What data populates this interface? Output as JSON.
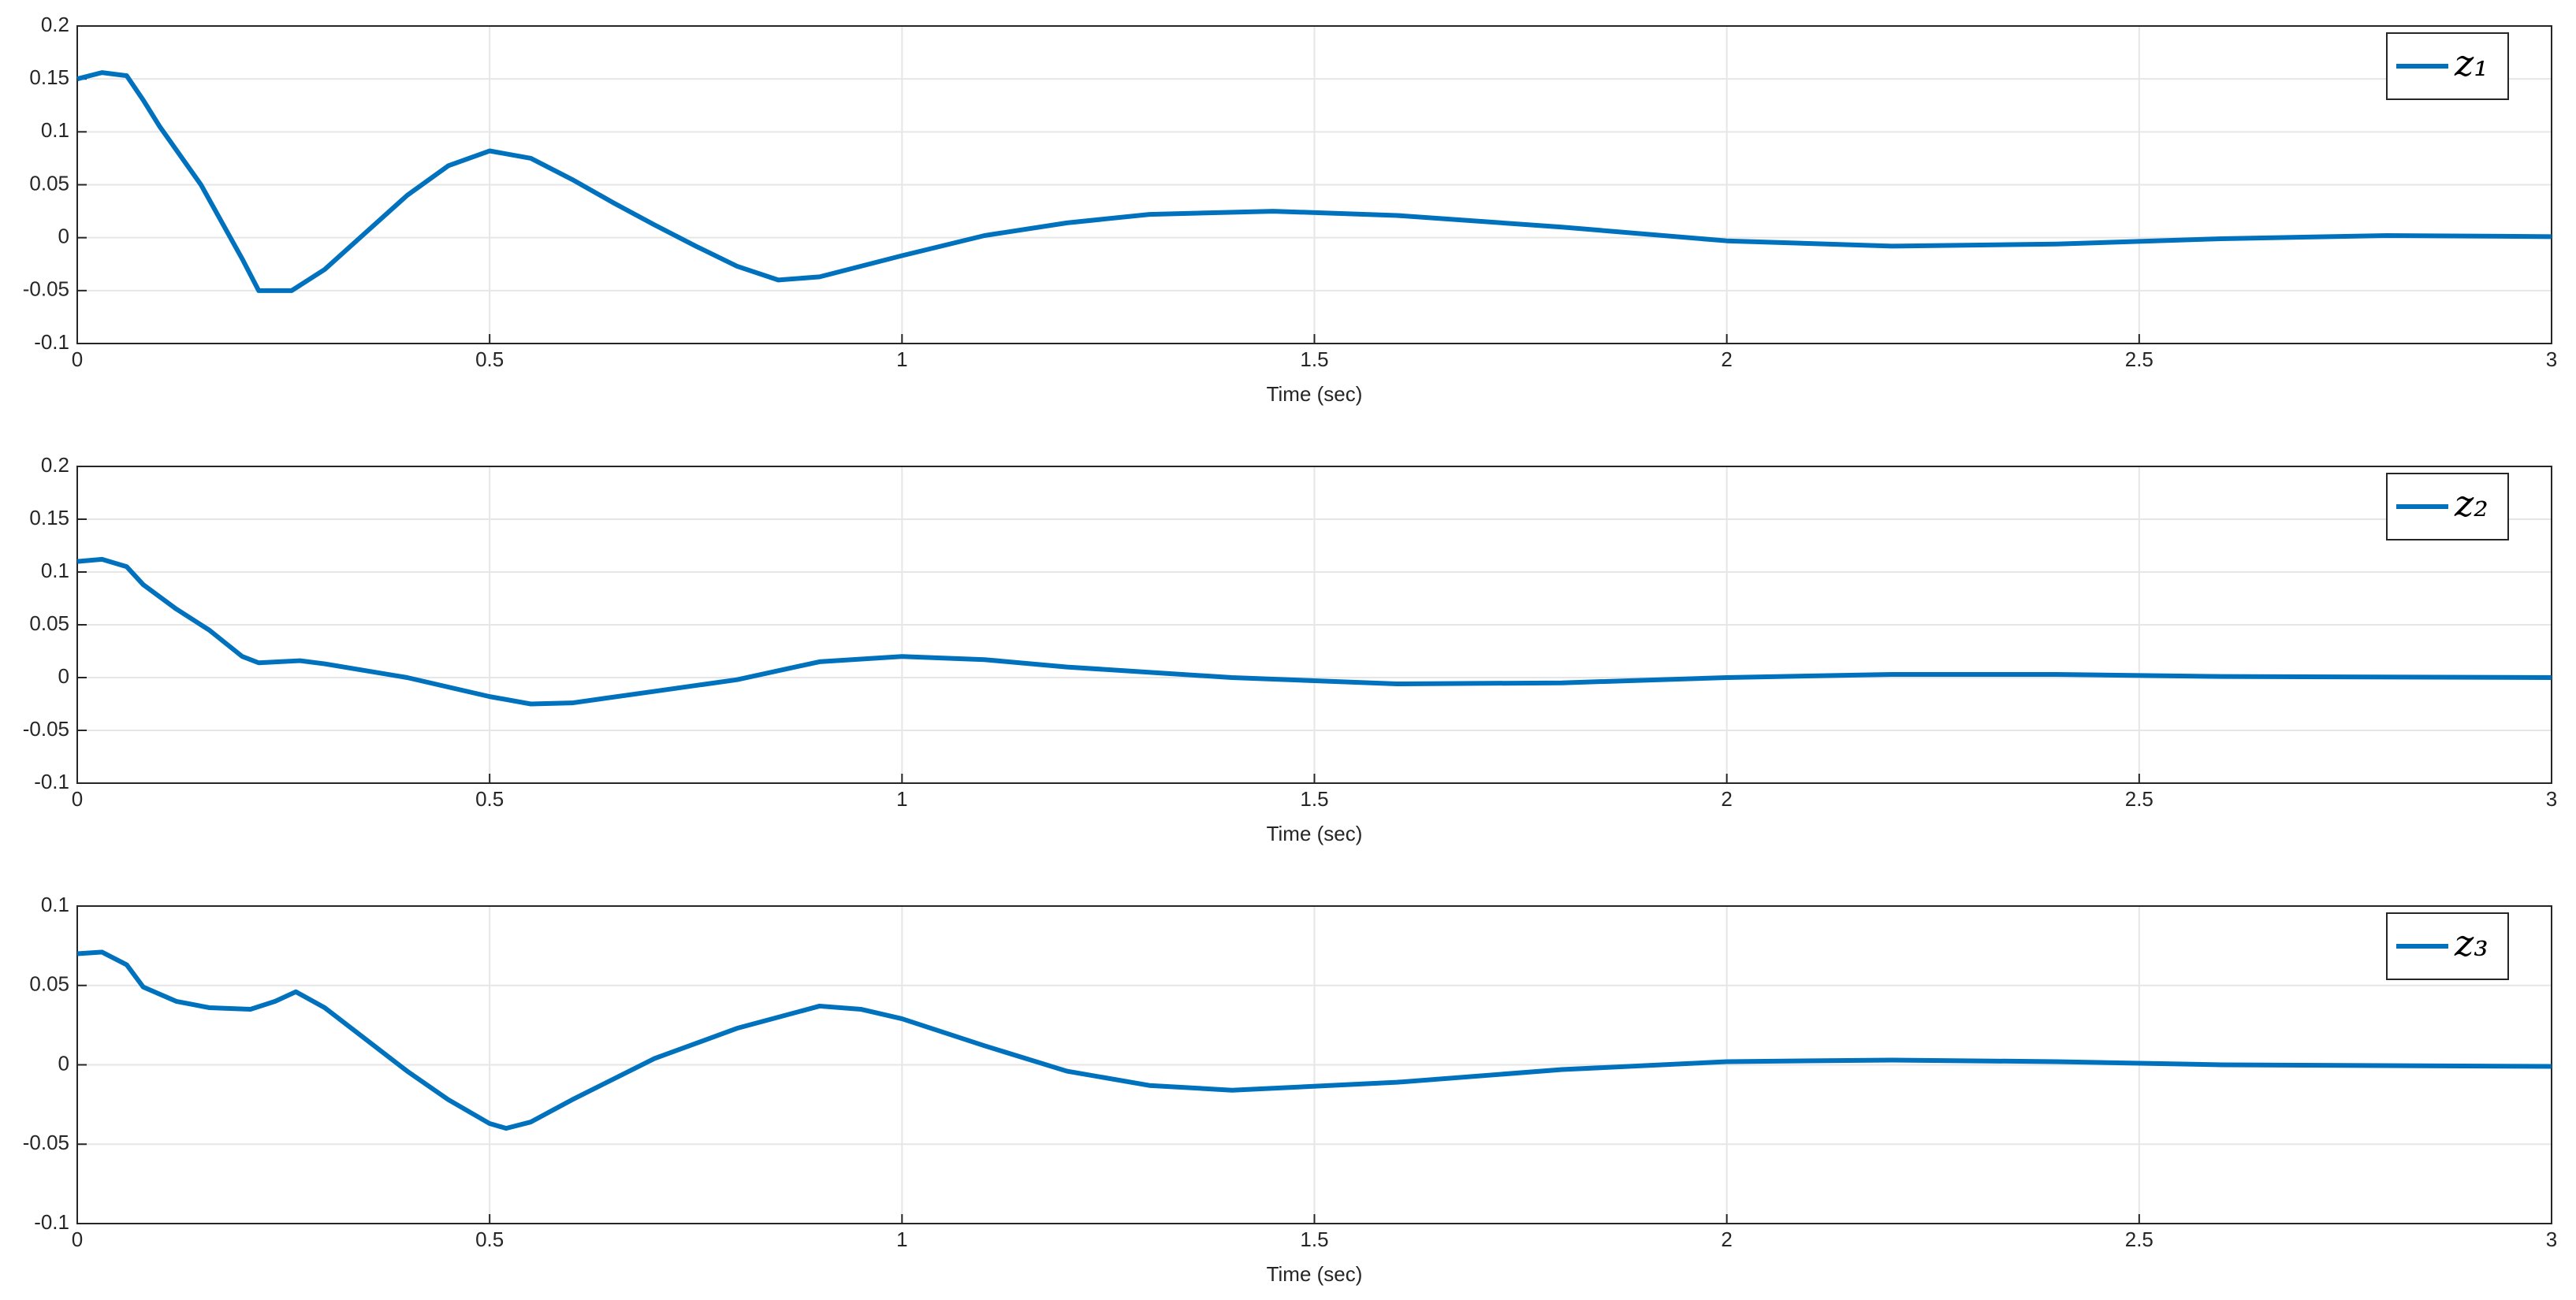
{
  "chart_data": [
    {
      "type": "line",
      "xlabel": "Time (sec)",
      "grid": true,
      "legend": "upper right",
      "xlim": [
        0,
        3
      ],
      "xticks": [
        0,
        0.5,
        1,
        1.5,
        2,
        2.5,
        3
      ],
      "ylim": [
        -0.1,
        0.2
      ],
      "yticks": [
        -0.1,
        -0.05,
        0,
        0.05,
        0.1,
        0.15,
        0.2
      ],
      "x": [
        0,
        0.03,
        0.06,
        0.08,
        0.1,
        0.15,
        0.2,
        0.22,
        0.26,
        0.3,
        0.35,
        0.4,
        0.45,
        0.5,
        0.55,
        0.6,
        0.65,
        0.7,
        0.75,
        0.8,
        0.85,
        0.9,
        1.0,
        1.1,
        1.2,
        1.3,
        1.45,
        1.6,
        1.8,
        2.0,
        2.2,
        2.4,
        2.6,
        2.8,
        3.0
      ],
      "series": [
        {
          "name": "z₁",
          "color": "#0072bd",
          "values": [
            0.15,
            0.156,
            0.153,
            0.13,
            0.105,
            0.05,
            -0.02,
            -0.05,
            -0.05,
            -0.03,
            0.005,
            0.04,
            0.068,
            0.082,
            0.075,
            0.055,
            0.033,
            0.012,
            -0.008,
            -0.027,
            -0.04,
            -0.037,
            -0.017,
            0.002,
            0.014,
            0.022,
            0.025,
            0.021,
            0.01,
            -0.003,
            -0.008,
            -0.006,
            -0.001,
            0.002,
            0.001
          ]
        }
      ]
    },
    {
      "type": "line",
      "xlabel": "Time (sec)",
      "grid": true,
      "legend": "upper right",
      "xlim": [
        0,
        3
      ],
      "xticks": [
        0,
        0.5,
        1,
        1.5,
        2,
        2.5,
        3
      ],
      "ylim": [
        -0.1,
        0.2
      ],
      "yticks": [
        -0.1,
        -0.05,
        0,
        0.05,
        0.1,
        0.15,
        0.2
      ],
      "x": [
        0,
        0.03,
        0.06,
        0.08,
        0.12,
        0.16,
        0.2,
        0.22,
        0.27,
        0.3,
        0.4,
        0.5,
        0.55,
        0.6,
        0.7,
        0.8,
        0.9,
        1.0,
        1.1,
        1.2,
        1.4,
        1.6,
        1.8,
        2.0,
        2.2,
        2.4,
        2.6,
        3.0
      ],
      "series": [
        {
          "name": "z₂",
          "color": "#0072bd",
          "values": [
            0.11,
            0.112,
            0.105,
            0.088,
            0.065,
            0.045,
            0.02,
            0.014,
            0.016,
            0.013,
            0.0,
            -0.018,
            -0.025,
            -0.024,
            -0.013,
            -0.002,
            0.015,
            0.02,
            0.017,
            0.01,
            0.0,
            -0.006,
            -0.005,
            0.0,
            0.003,
            0.003,
            0.001,
            0.0
          ]
        }
      ]
    },
    {
      "type": "line",
      "xlabel": "Time (sec)",
      "grid": true,
      "legend": "upper right",
      "xlim": [
        0,
        3
      ],
      "xticks": [
        0,
        0.5,
        1,
        1.5,
        2,
        2.5,
        3
      ],
      "ylim": [
        -0.1,
        0.1
      ],
      "yticks": [
        -0.1,
        -0.05,
        0,
        0.05,
        0.1
      ],
      "x": [
        0,
        0.03,
        0.06,
        0.08,
        0.12,
        0.16,
        0.21,
        0.24,
        0.265,
        0.3,
        0.35,
        0.4,
        0.45,
        0.5,
        0.52,
        0.55,
        0.6,
        0.7,
        0.8,
        0.9,
        0.95,
        1.0,
        1.1,
        1.2,
        1.3,
        1.4,
        1.6,
        1.8,
        2.0,
        2.2,
        2.4,
        2.6,
        3.0
      ],
      "series": [
        {
          "name": "z₃",
          "color": "#0072bd",
          "values": [
            0.07,
            0.071,
            0.063,
            0.049,
            0.04,
            0.036,
            0.035,
            0.04,
            0.046,
            0.036,
            0.016,
            -0.004,
            -0.022,
            -0.037,
            -0.04,
            -0.036,
            -0.022,
            0.004,
            0.023,
            0.037,
            0.035,
            0.029,
            0.012,
            -0.004,
            -0.013,
            -0.016,
            -0.011,
            -0.003,
            0.002,
            0.003,
            0.002,
            0.0,
            -0.001
          ]
        }
      ]
    }
  ]
}
